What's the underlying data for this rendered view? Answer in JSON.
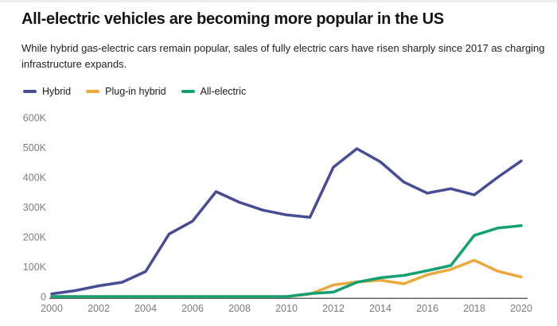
{
  "header": {
    "title": "All-electric vehicles are becoming more popular in the US",
    "subtitle": "While hybrid gas-electric cars remain popular, sales of fully electric cars have risen sharply since 2017 as charging infrastructure expands."
  },
  "legend": {
    "items": [
      {
        "label": "Hybrid",
        "color": "#464D96"
      },
      {
        "label": "Plug-in hybrid",
        "color": "#EBA93C"
      },
      {
        "label": "All-electric",
        "color": "#14A073"
      }
    ]
  },
  "chart_data": {
    "type": "line",
    "title": "All-electric vehicles are becoming more popular in the US",
    "x": [
      2000,
      2001,
      2002,
      2003,
      2004,
      2005,
      2006,
      2007,
      2008,
      2009,
      2010,
      2011,
      2012,
      2013,
      2014,
      2015,
      2016,
      2017,
      2018,
      2019,
      2020
    ],
    "series": [
      {
        "name": "Hybrid",
        "color": "#464D96",
        "values": [
          9000,
          20000,
          36000,
          48000,
          84000,
          210000,
          253000,
          352000,
          316000,
          290000,
          274000,
          266000,
          434000,
          496000,
          452000,
          384000,
          347000,
          362000,
          341000,
          400000,
          455000
        ]
      },
      {
        "name": "Plug-in hybrid",
        "color": "#EBA93C",
        "values": [
          0,
          0,
          0,
          0,
          0,
          0,
          0,
          0,
          0,
          0,
          0,
          8000,
          39000,
          49000,
          55000,
          43000,
          73000,
          91000,
          122000,
          85000,
          66000
        ]
      },
      {
        "name": "All-electric",
        "color": "#14A073",
        "values": [
          0,
          0,
          0,
          0,
          0,
          0,
          0,
          0,
          0,
          0,
          0,
          10000,
          15000,
          48000,
          63000,
          71000,
          87000,
          104000,
          205000,
          230000,
          238000
        ]
      }
    ],
    "xlabel": "",
    "ylabel": "",
    "ylim": [
      0,
      600000
    ],
    "y_ticks": [
      0,
      100000,
      200000,
      300000,
      400000,
      500000,
      600000
    ],
    "y_tick_labels": [
      "0",
      "100K",
      "200K",
      "300K",
      "400K",
      "500K",
      "600K"
    ],
    "x_tick_years": [
      2000,
      2002,
      2004,
      2006,
      2008,
      2010,
      2012,
      2014,
      2016,
      2018,
      2020
    ],
    "x_tick_labels": [
      "2000",
      "2002",
      "2004",
      "2006",
      "2008",
      "2010",
      "2012",
      "2014",
      "2016",
      "2018",
      "2020"
    ],
    "grid": false,
    "legend_position": "top-left",
    "axis_color": "#5f6368",
    "tick_label_color": "#7c7c7c"
  }
}
